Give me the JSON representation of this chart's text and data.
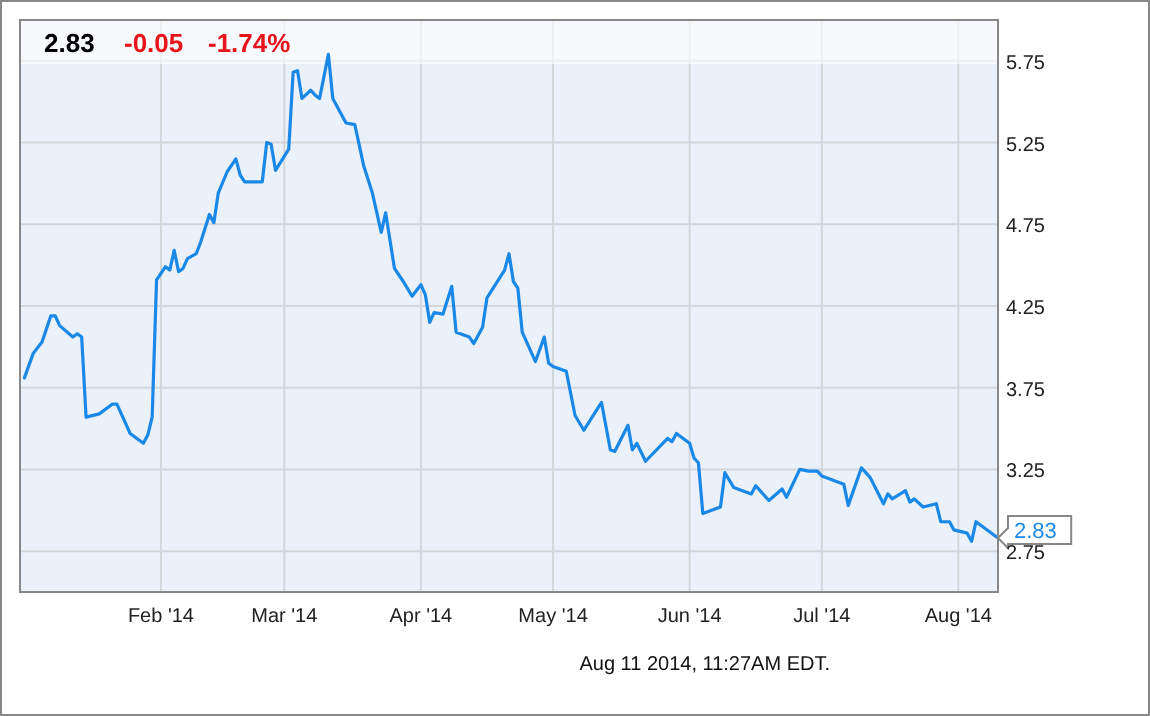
{
  "chart_data": {
    "type": "line",
    "title": "2.83",
    "annotations": [
      "-0.05",
      "-1.74%",
      "Aug 11 2014, 11:27AM EDT."
    ],
    "x": [
      "2014-01-01",
      "2014-01-03",
      "2014-01-05",
      "2014-01-07",
      "2014-01-08",
      "2014-01-09",
      "2014-01-12",
      "2014-01-13",
      "2014-01-14",
      "2014-01-15",
      "2014-01-18",
      "2014-01-21",
      "2014-01-22",
      "2014-01-24",
      "2014-01-25",
      "2014-01-28",
      "2014-01-29",
      "2014-01-30",
      "2014-01-31",
      "2014-02-02",
      "2014-02-03",
      "2014-02-04",
      "2014-02-05",
      "2014-02-06",
      "2014-02-07",
      "2014-02-09",
      "2014-02-10",
      "2014-02-12",
      "2014-02-13",
      "2014-02-14",
      "2014-02-16",
      "2014-02-18",
      "2014-02-19",
      "2014-02-20",
      "2014-02-24",
      "2014-02-25",
      "2014-02-26",
      "2014-02-27",
      "2014-03-02",
      "2014-03-03",
      "2014-03-04",
      "2014-03-05",
      "2014-03-07",
      "2014-03-08",
      "2014-03-09",
      "2014-03-11",
      "2014-03-12",
      "2014-03-15",
      "2014-03-17",
      "2014-03-19",
      "2014-03-21",
      "2014-03-23",
      "2014-03-24",
      "2014-03-26",
      "2014-03-28",
      "2014-03-30",
      "2014-04-01",
      "2014-04-02",
      "2014-04-03",
      "2014-04-04",
      "2014-04-06",
      "2014-04-08",
      "2014-04-09",
      "2014-04-12",
      "2014-04-13",
      "2014-04-15",
      "2014-04-16",
      "2014-04-20",
      "2014-04-21",
      "2014-04-22",
      "2014-04-23",
      "2014-04-24",
      "2014-04-27",
      "2014-04-29",
      "2014-04-30",
      "2014-05-01",
      "2014-05-04",
      "2014-05-06",
      "2014-05-08",
      "2014-05-12",
      "2014-05-14",
      "2014-05-15",
      "2014-05-18",
      "2014-05-19",
      "2014-05-20",
      "2014-05-22",
      "2014-05-27",
      "2014-05-28",
      "2014-05-29",
      "2014-06-01",
      "2014-06-02",
      "2014-06-03",
      "2014-06-04",
      "2014-06-08",
      "2014-06-09",
      "2014-06-11",
      "2014-06-15",
      "2014-06-16",
      "2014-06-19",
      "2014-06-22",
      "2014-06-23",
      "2014-06-26",
      "2014-06-28",
      "2014-06-30",
      "2014-07-01",
      "2014-07-06",
      "2014-07-07",
      "2014-07-10",
      "2014-07-12",
      "2014-07-15",
      "2014-07-16",
      "2014-07-17",
      "2014-07-20",
      "2014-07-21",
      "2014-07-22",
      "2014-07-24",
      "2014-07-27",
      "2014-07-28",
      "2014-07-30",
      "2014-07-31",
      "2014-08-03",
      "2014-08-04",
      "2014-08-05",
      "2014-08-08",
      "2014-08-10"
    ],
    "series": [
      {
        "color": "#1a88e6",
        "values": [
          3.81,
          3.96,
          4.03,
          4.19,
          4.19,
          4.13,
          4.06,
          4.08,
          4.06,
          3.57,
          3.59,
          3.65,
          3.65,
          3.53,
          3.47,
          3.41,
          3.46,
          3.57,
          4.41,
          4.49,
          4.47,
          4.59,
          4.46,
          4.48,
          4.54,
          4.57,
          4.64,
          4.81,
          4.76,
          4.94,
          5.07,
          5.15,
          5.05,
          5.01,
          5.01,
          5.25,
          5.24,
          5.08,
          5.21,
          5.68,
          5.69,
          5.52,
          5.57,
          5.54,
          5.52,
          5.79,
          5.52,
          5.37,
          5.36,
          5.11,
          4.94,
          4.7,
          4.82,
          4.48,
          4.4,
          4.31,
          4.38,
          4.32,
          4.15,
          4.21,
          4.2,
          4.37,
          4.09,
          4.06,
          4.02,
          4.12,
          4.3,
          4.47,
          4.57,
          4.4,
          4.36,
          4.09,
          3.91,
          4.06,
          3.9,
          3.88,
          3.85,
          3.58,
          3.49,
          3.66,
          3.37,
          3.36,
          3.52,
          3.37,
          3.41,
          3.3,
          3.44,
          3.42,
          3.47,
          3.41,
          3.32,
          3.29,
          2.98,
          3.02,
          3.23,
          3.14,
          3.1,
          3.15,
          3.06,
          3.13,
          3.08,
          3.25,
          3.24,
          3.24,
          3.21,
          3.16,
          3.03,
          3.26,
          3.2,
          3.04,
          3.1,
          3.07,
          3.12,
          3.05,
          3.07,
          3.02,
          3.04,
          2.93,
          2.93,
          2.88,
          2.86,
          2.81,
          2.93,
          2.87,
          2.83
        ],
        "value_labels": [
          null,
          null,
          null,
          null,
          null,
          null,
          null,
          null,
          null,
          null,
          null,
          null,
          null,
          null,
          null,
          null,
          null,
          null,
          null,
          null,
          null,
          null,
          null,
          null,
          null,
          null,
          null,
          null,
          null,
          null,
          null,
          null,
          null,
          null,
          null,
          null,
          null,
          null,
          null,
          null,
          null,
          null,
          null,
          null,
          null,
          null,
          null,
          null,
          null,
          null,
          null,
          null,
          null,
          null,
          null,
          null,
          null,
          null,
          null,
          null,
          null,
          null,
          null,
          null,
          null,
          null,
          null,
          null,
          null,
          null,
          null,
          null,
          null,
          null,
          null,
          null,
          null,
          null,
          null,
          null,
          null,
          null,
          null,
          null,
          null,
          null,
          null,
          null,
          null,
          null,
          null,
          null,
          null,
          null,
          null,
          null,
          null,
          null,
          null,
          null,
          null,
          null,
          null,
          null,
          null,
          null,
          null,
          null,
          null,
          null,
          null,
          null,
          null,
          null,
          null,
          null,
          null,
          null,
          null,
          null,
          null,
          null,
          null,
          null,
          "2.83"
        ]
      }
    ],
    "xlim": [
      "2013-12-31",
      "2014-08-10"
    ],
    "xticks": [
      {
        "value": "2014-02-01",
        "label": "Feb '14"
      },
      {
        "value": "2014-03-01",
        "label": "Mar '14"
      },
      {
        "value": "2014-04-01",
        "label": "Apr '14"
      },
      {
        "value": "2014-05-01",
        "label": "May '14"
      },
      {
        "value": "2014-06-01",
        "label": "Jun '14"
      },
      {
        "value": "2014-07-01",
        "label": "Jul '14"
      },
      {
        "value": "2014-08-01",
        "label": "Aug '14"
      }
    ],
    "ylim": [
      2.5,
      6.0
    ],
    "yticks": [
      2.75,
      3.25,
      3.75,
      4.25,
      4.75,
      5.25,
      5.75
    ],
    "grid": true,
    "marker": "none",
    "line_style": "solid"
  }
}
